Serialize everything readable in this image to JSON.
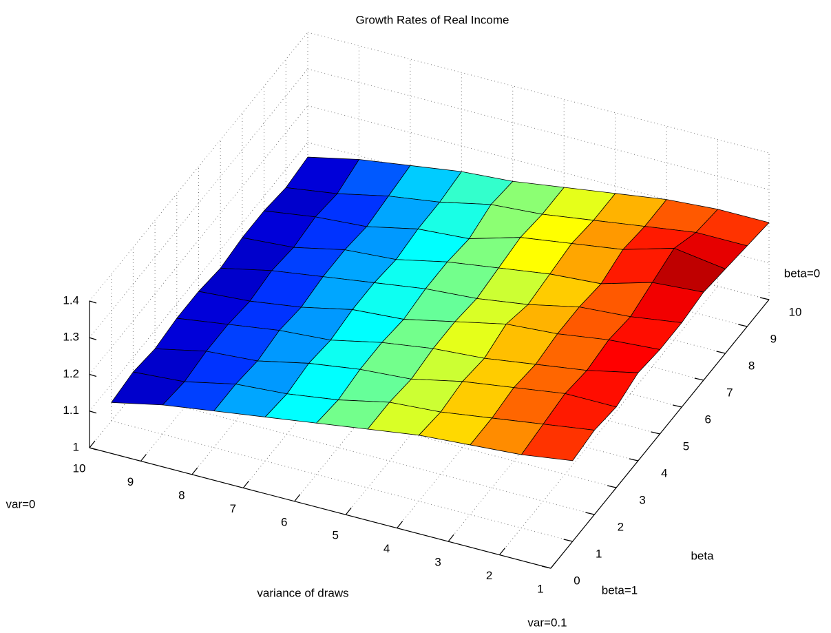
{
  "chart_data": {
    "type": "surface",
    "title": "Growth Rates of Real Income",
    "xlabel": "variance of draws",
    "ylabel": "beta",
    "annotations": [
      "var=0",
      "var=0.1",
      "beta=0",
      "beta=1"
    ],
    "colormap": "jet",
    "grid": true,
    "xlim": [
      1,
      10
    ],
    "xticks": [
      1,
      2,
      3,
      4,
      5,
      6,
      7,
      8,
      9,
      10
    ],
    "ylim": [
      0,
      10
    ],
    "yticks": [
      0,
      1,
      2,
      3,
      4,
      5,
      6,
      7,
      8,
      9,
      10
    ],
    "zlim": [
      1,
      1.4
    ],
    "zticks": [
      1,
      1.1,
      1.2,
      1.3,
      1.4
    ],
    "x": [
      1,
      2,
      3,
      4,
      5,
      6,
      7,
      8,
      9,
      10
    ],
    "y": [
      1,
      2,
      3,
      4,
      5,
      6,
      7,
      8,
      9,
      10
    ],
    "z": [
      [
        1.22,
        1.2,
        1.19,
        1.18,
        1.16,
        1.14,
        1.12,
        1.1,
        1.08,
        1.05
      ],
      [
        1.23,
        1.21,
        1.19,
        1.17,
        1.16,
        1.13,
        1.11,
        1.1,
        1.07,
        1.06
      ],
      [
        1.22,
        1.22,
        1.2,
        1.18,
        1.15,
        1.14,
        1.12,
        1.09,
        1.08,
        1.05
      ],
      [
        1.24,
        1.21,
        1.19,
        1.17,
        1.16,
        1.14,
        1.11,
        1.1,
        1.08,
        1.06
      ],
      [
        1.23,
        1.22,
        1.2,
        1.19,
        1.16,
        1.13,
        1.12,
        1.09,
        1.07,
        1.06
      ],
      [
        1.23,
        1.21,
        1.2,
        1.17,
        1.15,
        1.14,
        1.12,
        1.1,
        1.08,
        1.05
      ],
      [
        1.24,
        1.23,
        1.19,
        1.18,
        1.16,
        1.14,
        1.11,
        1.1,
        1.07,
        1.06
      ],
      [
        1.23,
        1.25,
        1.21,
        1.19,
        1.17,
        1.13,
        1.12,
        1.09,
        1.08,
        1.06
      ],
      [
        1.22,
        1.22,
        1.2,
        1.18,
        1.16,
        1.15,
        1.12,
        1.1,
        1.07,
        1.05
      ],
      [
        1.21,
        1.21,
        1.2,
        1.18,
        1.16,
        1.14,
        1.13,
        1.11,
        1.09,
        1.06
      ]
    ]
  }
}
